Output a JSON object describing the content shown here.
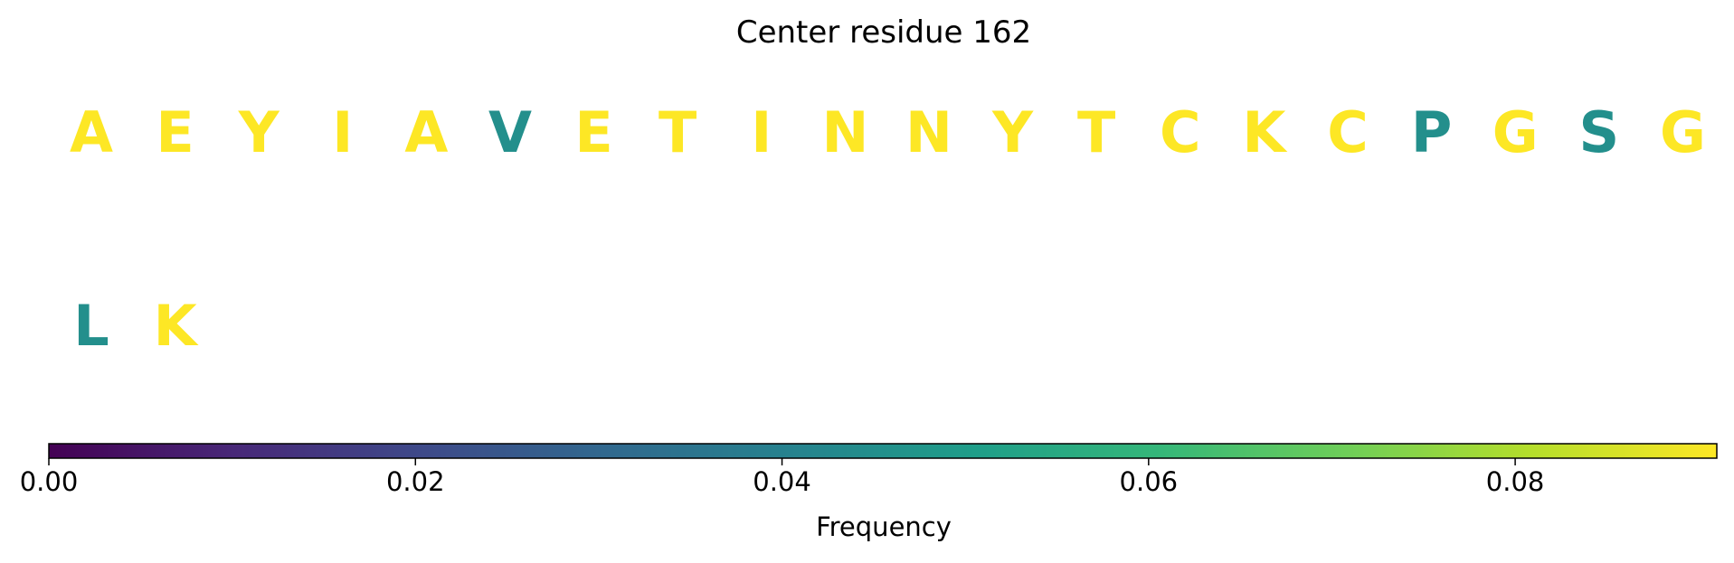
{
  "chart_data": {
    "type": "heatmap",
    "title": "Center residue 162",
    "residue_rows": [
      [
        {
          "letter": "A",
          "frequency": 0.091
        },
        {
          "letter": "E",
          "frequency": 0.091
        },
        {
          "letter": "Y",
          "frequency": 0.091
        },
        {
          "letter": "I",
          "frequency": 0.091
        },
        {
          "letter": "A",
          "frequency": 0.091
        },
        {
          "letter": "V",
          "frequency": 0.045
        },
        {
          "letter": "E",
          "frequency": 0.091
        },
        {
          "letter": "T",
          "frequency": 0.091
        },
        {
          "letter": "I",
          "frequency": 0.091
        },
        {
          "letter": "N",
          "frequency": 0.091
        },
        {
          "letter": "N",
          "frequency": 0.091
        },
        {
          "letter": "Y",
          "frequency": 0.091
        },
        {
          "letter": "T",
          "frequency": 0.091
        },
        {
          "letter": "C",
          "frequency": 0.091
        },
        {
          "letter": "K",
          "frequency": 0.091
        },
        {
          "letter": "C",
          "frequency": 0.091
        },
        {
          "letter": "P",
          "frequency": 0.045
        },
        {
          "letter": "G",
          "frequency": 0.091
        },
        {
          "letter": "S",
          "frequency": 0.045
        },
        {
          "letter": "G",
          "frequency": 0.091
        }
      ],
      [
        {
          "letter": "L",
          "frequency": 0.045
        },
        {
          "letter": "K",
          "frequency": 0.091
        }
      ]
    ],
    "colorbar": {
      "colormap": "viridis",
      "range": [
        0,
        0.091
      ],
      "label": "Frequency",
      "ticks": [
        0.0,
        0.02,
        0.04,
        0.06,
        0.08
      ],
      "tick_labels": [
        "0.00",
        "0.02",
        "0.04",
        "0.06",
        "0.08"
      ],
      "orientation": "horizontal",
      "placement": "bottom"
    }
  }
}
